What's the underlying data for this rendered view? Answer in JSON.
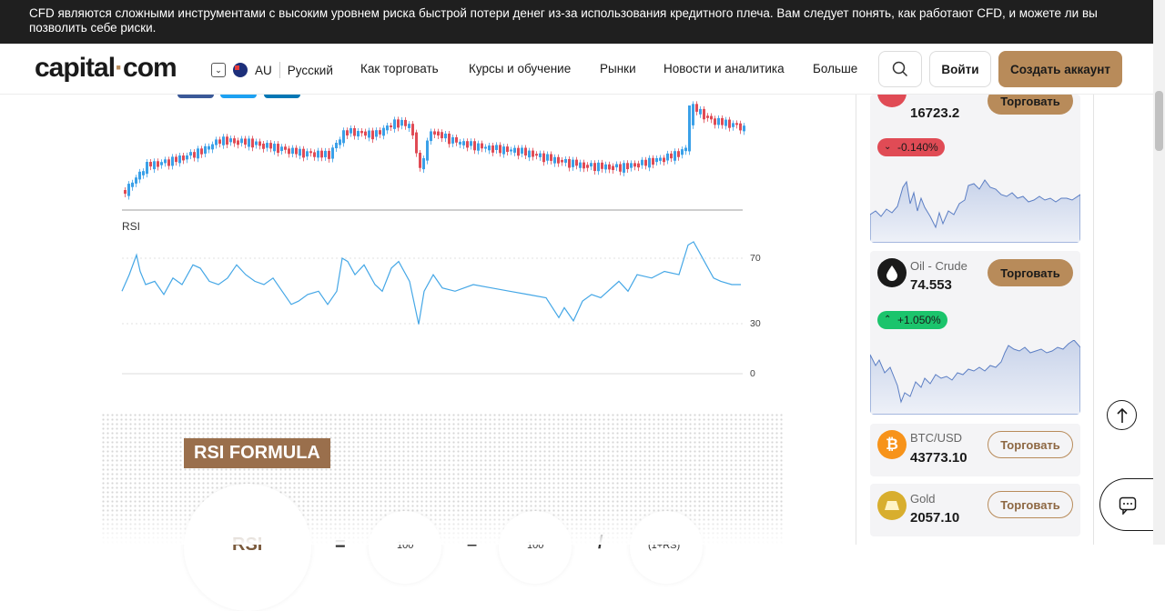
{
  "risk_banner": {
    "text": "CFD являются сложными инструментами с высоким уровнем риска быстрой потери денег из-за использования кредитного плеча. Вам следует понять, как работают CFD, и можете ли вы позволить себе риски."
  },
  "header": {
    "logo_main": "capital",
    "logo_dot": "·",
    "logo_tail": "com",
    "region_code": "AU",
    "language": "Русский",
    "nav": [
      "Как торговать",
      "Курсы и обучение",
      "Рынки",
      "Новости и аналитика",
      "Больше"
    ],
    "login_label": "Войти",
    "create_account_label": "Создать аккаунт"
  },
  "chart": {
    "rsi_label": "RSI",
    "ticks": [
      "70",
      "30",
      "0"
    ]
  },
  "formula": {
    "title": "RSI FORMULA",
    "lhs": "RSI",
    "eq": "=",
    "a": "100",
    "minus": "–",
    "b": "100",
    "div": "/",
    "c": "(1+RS)"
  },
  "markets": [
    {
      "name": "",
      "price": "16723.2",
      "change": "-0.140%",
      "direction": "down",
      "trade_label": "Торговать"
    },
    {
      "name": "Oil - Crude",
      "price": "74.553",
      "change": "+1.050%",
      "direction": "up",
      "trade_label": "Торговать",
      "icon": "oil-drop-icon"
    },
    {
      "name": "BTC/USD",
      "price": "43773.10",
      "trade_label": "Торговать",
      "icon": "bitcoin-icon"
    },
    {
      "name": "Gold",
      "price": "2057.10",
      "trade_label": "Торговать",
      "icon": "gold-bars-icon"
    }
  ],
  "colors": {
    "brand": "#b88b5a",
    "bull": "#3aa0e8",
    "bear": "#e04b55",
    "rsi_line": "#45a7e6"
  }
}
